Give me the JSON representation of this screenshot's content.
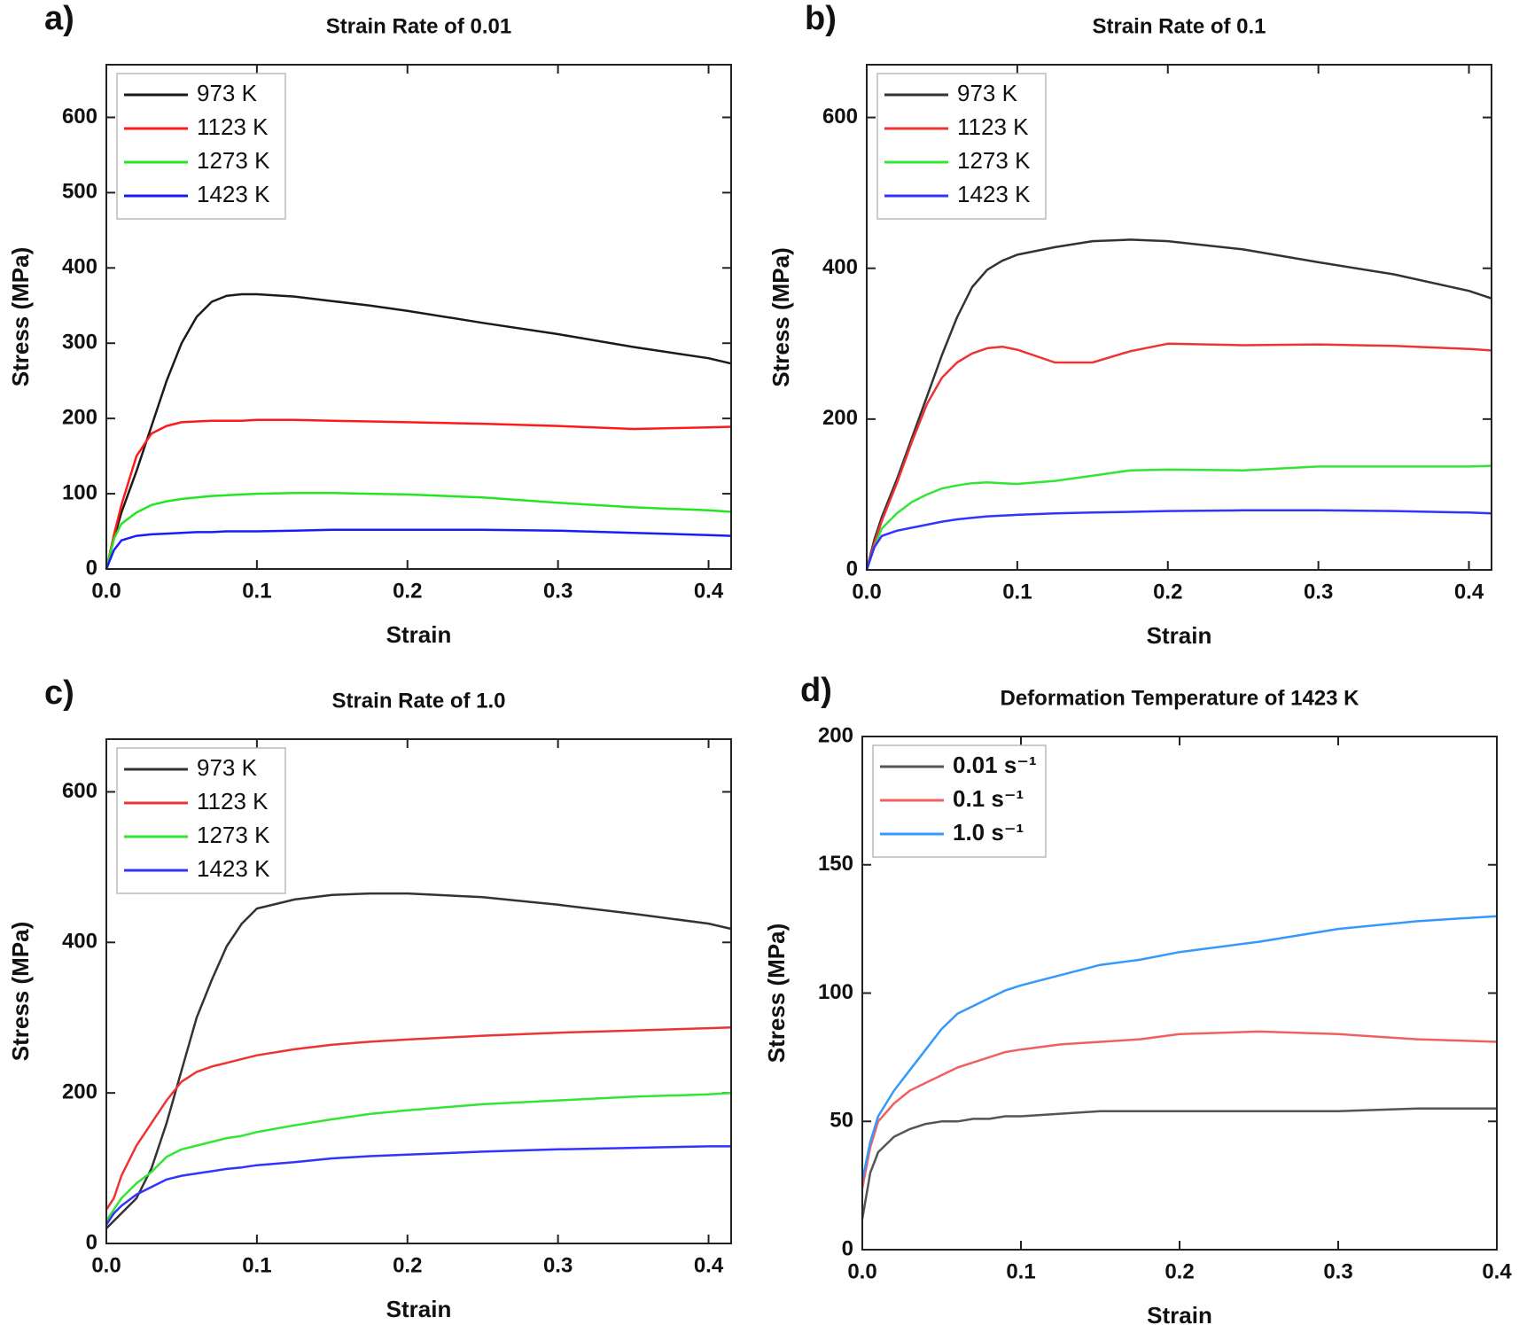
{
  "chart_data": [
    {
      "type": "line",
      "panel_label": "a)",
      "title": "Strain Rate of 0.01",
      "xlabel": "Strain",
      "ylabel": "Stress (MPa)",
      "xlim": [
        0,
        0.415
      ],
      "ylim": [
        0,
        670
      ],
      "xticks": [
        {
          "value": 0,
          "label": "0.0"
        },
        0.1,
        0.2,
        0.3,
        0.4
      ],
      "yticks": [
        0,
        100,
        200,
        300,
        400,
        500,
        600
      ],
      "x": [
        0,
        0.005,
        0.01,
        0.02,
        0.03,
        0.04,
        0.05,
        0.06,
        0.07,
        0.08,
        0.09,
        0.1,
        0.125,
        0.15,
        0.175,
        0.2,
        0.25,
        0.3,
        0.35,
        0.4,
        0.415
      ],
      "series": [
        {
          "name": "973 K",
          "color": "#1a1a1a",
          "values": [
            0,
            40,
            75,
            130,
            190,
            250,
            300,
            335,
            355,
            363,
            365,
            365,
            362,
            356,
            350,
            343,
            327,
            312,
            295,
            280,
            273
          ]
        },
        {
          "name": "1123 K",
          "color": "#ff1a1a",
          "values": [
            0,
            45,
            85,
            150,
            180,
            190,
            195,
            196,
            197,
            197,
            197,
            198,
            198,
            197,
            196,
            195,
            193,
            190,
            186,
            188,
            189
          ]
        },
        {
          "name": "1273 K",
          "color": "#22e622",
          "values": [
            0,
            40,
            60,
            75,
            85,
            90,
            93,
            95,
            97,
            98,
            99,
            100,
            101,
            101,
            100,
            99,
            95,
            88,
            82,
            78,
            76
          ]
        },
        {
          "name": "1423 K",
          "color": "#1a1aff",
          "values": [
            0,
            25,
            38,
            44,
            46,
            47,
            48,
            49,
            49,
            50,
            50,
            50,
            51,
            52,
            52,
            52,
            52,
            51,
            48,
            45,
            44
          ]
        }
      ]
    },
    {
      "type": "line",
      "panel_label": "b)",
      "title": "Strain Rate of 0.1",
      "xlabel": "Strain",
      "ylabel": "Stress (MPa)",
      "xlim": [
        0,
        0.415
      ],
      "ylim": [
        0,
        670
      ],
      "xticks": [
        {
          "value": 0,
          "label": "0.0"
        },
        0.1,
        0.2,
        0.3,
        0.4
      ],
      "yticks": [
        0,
        200,
        400,
        600
      ],
      "x": [
        0,
        0.005,
        0.01,
        0.02,
        0.03,
        0.04,
        0.05,
        0.06,
        0.07,
        0.08,
        0.09,
        0.1,
        0.125,
        0.15,
        0.175,
        0.2,
        0.25,
        0.3,
        0.35,
        0.4,
        0.415
      ],
      "series": [
        {
          "name": "973 K",
          "color": "#333333",
          "values": [
            0,
            40,
            70,
            120,
            175,
            230,
            285,
            335,
            375,
            398,
            410,
            418,
            428,
            436,
            438,
            436,
            425,
            408,
            392,
            370,
            360
          ]
        },
        {
          "name": "1123 K",
          "color": "#ee3333",
          "values": [
            0,
            35,
            65,
            115,
            170,
            220,
            255,
            275,
            287,
            294,
            296,
            292,
            275,
            275,
            290,
            300,
            298,
            299,
            297,
            293,
            291
          ]
        },
        {
          "name": "1273 K",
          "color": "#33e633",
          "values": [
            0,
            30,
            55,
            75,
            90,
            100,
            108,
            112,
            115,
            116,
            115,
            114,
            118,
            125,
            132,
            133,
            132,
            137,
            137,
            137,
            138
          ]
        },
        {
          "name": "1423 K",
          "color": "#3333ff",
          "values": [
            0,
            30,
            45,
            52,
            56,
            60,
            64,
            67,
            69,
            71,
            72,
            73,
            75,
            76,
            77,
            78,
            79,
            79,
            78,
            76,
            75
          ]
        }
      ]
    },
    {
      "type": "line",
      "panel_label": "c)",
      "title": "Strain Rate of 1.0",
      "xlabel": "Strain",
      "ylabel": "Stress (MPa)",
      "xlim": [
        0,
        0.415
      ],
      "ylim": [
        0,
        670
      ],
      "xticks": [
        {
          "value": 0,
          "label": "0.0"
        },
        0.1,
        0.2,
        0.3,
        0.4
      ],
      "yticks": [
        0,
        200,
        400,
        600
      ],
      "x": [
        0,
        0.005,
        0.01,
        0.02,
        0.03,
        0.04,
        0.05,
        0.06,
        0.07,
        0.08,
        0.09,
        0.1,
        0.125,
        0.15,
        0.175,
        0.2,
        0.25,
        0.3,
        0.35,
        0.4,
        0.415
      ],
      "series": [
        {
          "name": "973 K",
          "color": "#333333",
          "values": [
            20,
            30,
            40,
            60,
            100,
            160,
            230,
            300,
            350,
            395,
            425,
            445,
            457,
            463,
            465,
            465,
            460,
            450,
            438,
            425,
            418
          ]
        },
        {
          "name": "1123 K",
          "color": "#ee3333",
          "values": [
            45,
            60,
            90,
            130,
            160,
            190,
            215,
            228,
            235,
            240,
            245,
            250,
            258,
            264,
            268,
            271,
            276,
            280,
            283,
            286,
            287
          ]
        },
        {
          "name": "1273 K",
          "color": "#33e633",
          "values": [
            30,
            45,
            60,
            80,
            95,
            115,
            125,
            130,
            135,
            140,
            143,
            148,
            157,
            165,
            172,
            177,
            185,
            190,
            195,
            198,
            200
          ]
        },
        {
          "name": "1423 K",
          "color": "#3333ff",
          "values": [
            25,
            40,
            50,
            65,
            75,
            85,
            90,
            93,
            96,
            99,
            101,
            104,
            108,
            113,
            116,
            118,
            122,
            125,
            127,
            129,
            129
          ]
        }
      ]
    },
    {
      "type": "line",
      "panel_label": "d)",
      "title": "Deformation Temperature of 1423 K",
      "xlabel": "Strain",
      "ylabel": "Stress (MPa)",
      "xlim": [
        0,
        0.4
      ],
      "ylim": [
        0,
        200
      ],
      "xticks": [
        {
          "value": 0,
          "label": "0.0"
        },
        0.1,
        0.2,
        0.3,
        0.4
      ],
      "yticks": [
        0,
        50,
        100,
        150,
        200
      ],
      "x": [
        0,
        0.005,
        0.01,
        0.02,
        0.03,
        0.04,
        0.05,
        0.06,
        0.07,
        0.08,
        0.09,
        0.1,
        0.125,
        0.15,
        0.175,
        0.2,
        0.25,
        0.3,
        0.35,
        0.4
      ],
      "series": [
        {
          "name": "0.01 s⁻¹",
          "color": "#555555",
          "values": [
            12,
            30,
            38,
            44,
            47,
            49,
            50,
            50,
            51,
            51,
            52,
            52,
            53,
            54,
            54,
            54,
            54,
            54,
            55,
            55
          ]
        },
        {
          "name": "0.1 s⁻¹",
          "color": "#f06060",
          "values": [
            24,
            40,
            50,
            57,
            62,
            65,
            68,
            71,
            73,
            75,
            77,
            78,
            80,
            81,
            82,
            84,
            85,
            84,
            82,
            81
          ]
        },
        {
          "name": "1.0 s⁻¹",
          "color": "#3399ff",
          "values": [
            27,
            42,
            52,
            62,
            70,
            78,
            86,
            92,
            95,
            98,
            101,
            103,
            107,
            111,
            113,
            116,
            120,
            125,
            128,
            130
          ]
        }
      ]
    }
  ]
}
